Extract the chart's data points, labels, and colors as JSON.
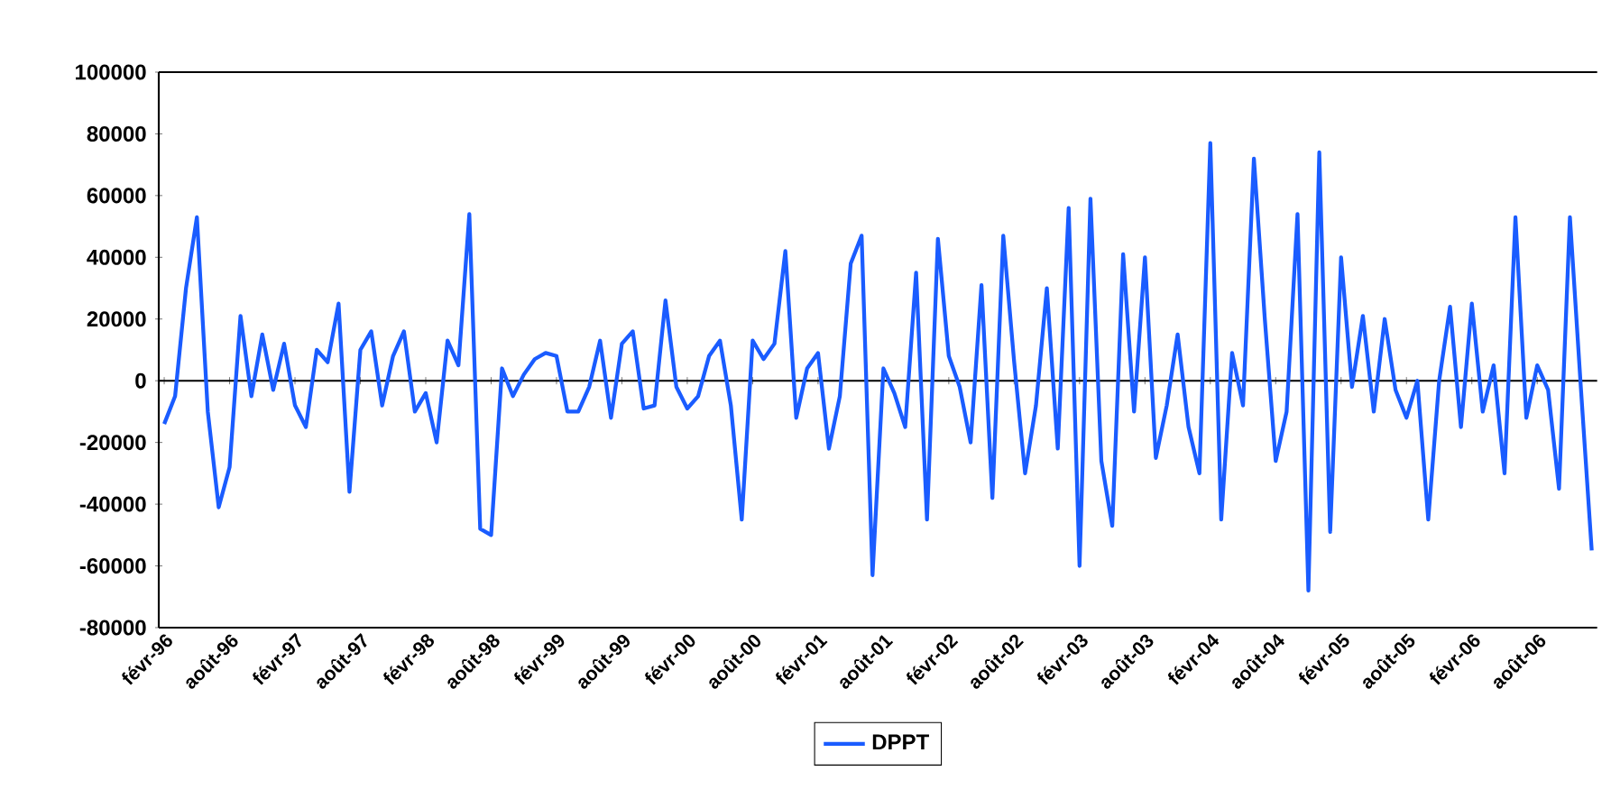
{
  "chart_data": {
    "type": "line",
    "categories": [
      "févr-96",
      null,
      null,
      null,
      null,
      null,
      "août-96",
      null,
      null,
      null,
      null,
      null,
      "févr-97",
      null,
      null,
      null,
      null,
      null,
      "août-97",
      null,
      null,
      null,
      null,
      null,
      "févr-98",
      null,
      null,
      null,
      null,
      null,
      "août-98",
      null,
      null,
      null,
      null,
      null,
      "févr-99",
      null,
      null,
      null,
      null,
      null,
      "août-99",
      null,
      null,
      null,
      null,
      null,
      "févr-00",
      null,
      null,
      null,
      null,
      null,
      "août-00",
      null,
      null,
      null,
      null,
      null,
      "févr-01",
      null,
      null,
      null,
      null,
      null,
      "août-01",
      null,
      null,
      null,
      null,
      null,
      "févr-02",
      null,
      null,
      null,
      null,
      null,
      "août-02",
      null,
      null,
      null,
      null,
      null,
      "févr-03",
      null,
      null,
      null,
      null,
      null,
      "août-03",
      null,
      null,
      null,
      null,
      null,
      "févr-04",
      null,
      null,
      null,
      null,
      null,
      "août-04",
      null,
      null,
      null,
      null,
      null,
      "févr-05",
      null,
      null,
      null,
      null,
      null,
      "août-05",
      null,
      null,
      null,
      null,
      null,
      "févr-06",
      null,
      null,
      null,
      null,
      null,
      "août-06",
      null,
      null,
      null,
      null,
      null
    ],
    "series": [
      {
        "name": "DPPT",
        "color": "#1a5cff",
        "values": [
          -14000,
          -5000,
          30000,
          53000,
          -10000,
          -41000,
          -28000,
          21000,
          -5000,
          15000,
          -3000,
          12000,
          -8000,
          -15000,
          10000,
          6000,
          25000,
          -36000,
          10000,
          16000,
          -8000,
          8000,
          16000,
          -10000,
          -4000,
          -20000,
          13000,
          5000,
          54000,
          -48000,
          -50000,
          4000,
          -5000,
          2000,
          7000,
          9000,
          8000,
          -10000,
          -10000,
          -2000,
          13000,
          -12000,
          12000,
          16000,
          -9000,
          -8000,
          26000,
          -2000,
          -9000,
          -5000,
          8000,
          13000,
          -8000,
          -45000,
          13000,
          7000,
          12000,
          42000,
          -12000,
          4000,
          9000,
          -22000,
          -5000,
          38000,
          47000,
          -63000,
          4000,
          -4000,
          -15000,
          35000,
          -45000,
          46000,
          8000,
          -2000,
          -20000,
          31000,
          -38000,
          47000,
          6000,
          -30000,
          -8000,
          30000,
          -22000,
          56000,
          -60000,
          59000,
          -26000,
          -47000,
          41000,
          -10000,
          40000,
          -25000,
          -8000,
          15000,
          -15000,
          -30000,
          77000,
          -45000,
          9000,
          -8000,
          72000,
          20000,
          -26000,
          -10000,
          54000,
          -68000,
          74000,
          -49000,
          40000,
          -2000,
          21000,
          -10000,
          20000,
          -3000,
          -12000,
          0,
          -45000,
          0,
          24000,
          -15000,
          25000,
          -10000,
          5000,
          -30000,
          53000,
          -12000,
          5000,
          -3000,
          -35000,
          53000,
          -2000,
          -55000
        ]
      }
    ],
    "ylim": [
      -80000,
      100000
    ],
    "yticks": [
      -80000,
      -60000,
      -40000,
      -20000,
      0,
      20000,
      40000,
      60000,
      80000,
      100000
    ],
    "legend": "bottom",
    "marker": "none",
    "line_style": "solid"
  }
}
